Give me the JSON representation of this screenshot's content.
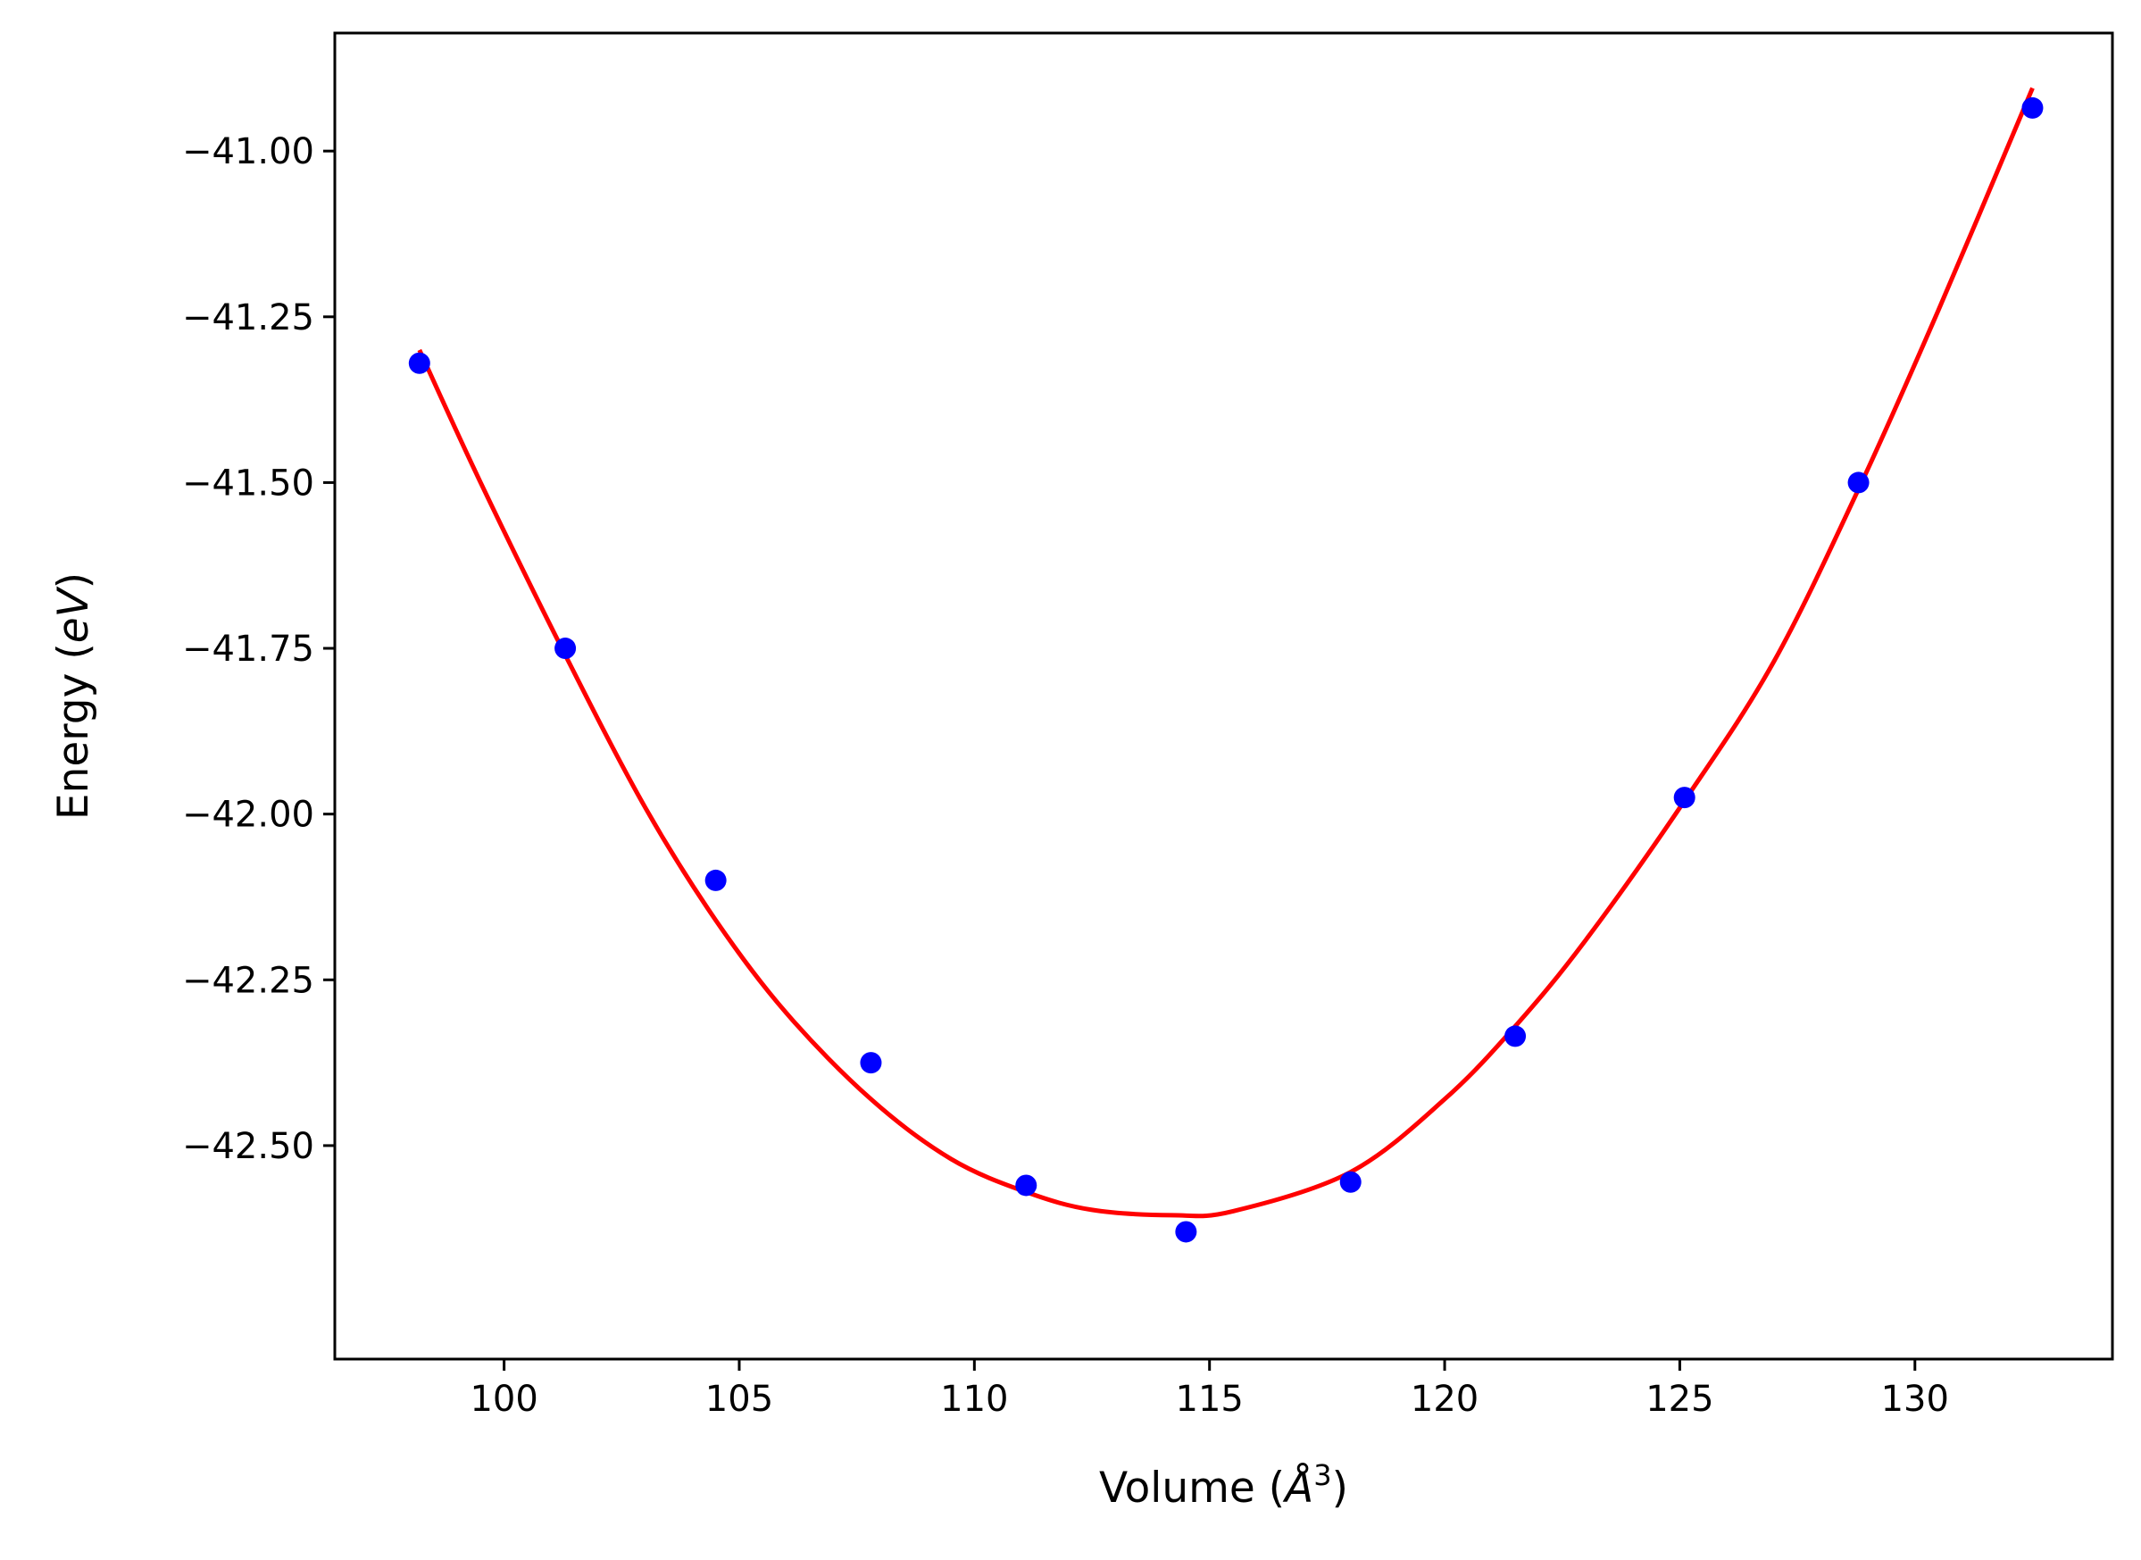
{
  "chart_data": {
    "type": "scatter",
    "title": "",
    "xlabel": "Volume",
    "xlabel_unit_base": "Å",
    "xlabel_unit_exp": "3",
    "ylabel": "Energy",
    "ylabel_unit": "eV",
    "xlim": [
      96.4,
      134.2
    ],
    "ylim": [
      -42.822,
      -40.822
    ],
    "xticks": [
      100,
      105,
      110,
      115,
      120,
      125,
      130
    ],
    "yticks": [
      -41.0,
      -41.25,
      -41.5,
      -41.75,
      -42.0,
      -42.25,
      -42.5
    ],
    "xtick_labels": [
      "100",
      "105",
      "110",
      "115",
      "120",
      "125",
      "130"
    ],
    "ytick_labels": [
      "−41.00",
      "−41.25",
      "−41.50",
      "−41.75",
      "−42.00",
      "−42.25",
      "−42.50"
    ],
    "grid": false,
    "series": [
      {
        "kind": "points",
        "color": "#0000ff",
        "x": [
          98.2,
          101.3,
          104.5,
          107.8,
          111.1,
          114.5,
          118.0,
          121.5,
          125.1,
          128.8,
          132.5
        ],
        "y": [
          -41.32,
          -41.75,
          -42.1,
          -42.375,
          -42.56,
          -42.63,
          -42.555,
          -42.335,
          -41.975,
          -41.5,
          -40.935
        ]
      },
      {
        "kind": "fit-curve",
        "color": "#ff0000",
        "x": [
          98.2,
          99.5,
          101.3,
          103.0,
          104.5,
          106.0,
          107.8,
          109.5,
          111.1,
          112.5,
          114.2,
          115.5,
          118.0,
          120.0,
          121.5,
          123.0,
          125.1,
          127.0,
          128.8,
          130.5,
          132.5
        ],
        "y": [
          -41.3,
          -41.5,
          -41.76,
          -41.99,
          -42.16,
          -42.3,
          -42.43,
          -42.52,
          -42.57,
          -42.597,
          -42.605,
          -42.599,
          -42.54,
          -42.43,
          -42.32,
          -42.19,
          -41.98,
          -41.77,
          -41.51,
          -41.24,
          -40.905
        ]
      }
    ]
  }
}
